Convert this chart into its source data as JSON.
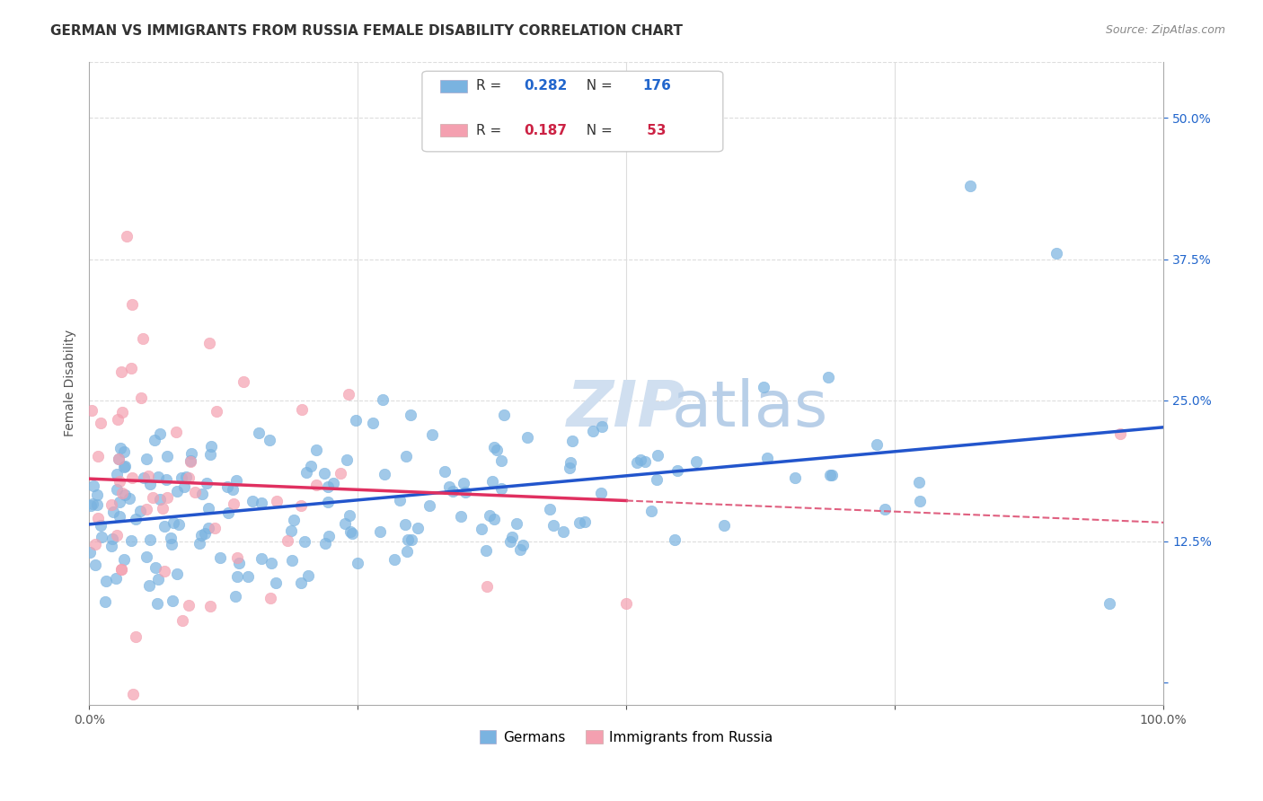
{
  "title": "GERMAN VS IMMIGRANTS FROM RUSSIA FEMALE DISABILITY CORRELATION CHART",
  "source_text": "Source: ZipAtlas.com",
  "xlabel": "",
  "ylabel": "Female Disability",
  "xlim": [
    0.0,
    1.0
  ],
  "ylim": [
    -0.02,
    0.55
  ],
  "x_ticks": [
    0.0,
    0.25,
    0.5,
    0.75,
    1.0
  ],
  "x_tick_labels": [
    "0.0%",
    "",
    "",
    "",
    "100.0%"
  ],
  "y_ticks": [
    0.0,
    0.125,
    0.25,
    0.375,
    0.5
  ],
  "y_tick_labels": [
    "",
    "12.5%",
    "25.0%",
    "37.5%",
    "50.0%"
  ],
  "german_R": 0.282,
  "german_N": 176,
  "russia_R": 0.187,
  "russia_N": 53,
  "german_color": "#7ab3e0",
  "russia_color": "#f4a0b0",
  "german_line_color": "#2255cc",
  "russia_line_color": "#e03060",
  "russia_dash_color": "#e06080",
  "watermark_text": "ZIPatlas",
  "watermark_color": "#d0dff0",
  "legend_label_german": "R = 0.282   N = 176",
  "legend_label_russia": "R = 0.187   N =  53",
  "bottom_legend_german": "Germans",
  "bottom_legend_russia": "Immigrants from Russia",
  "background_color": "#ffffff",
  "grid_color": "#dddddd",
  "title_fontsize": 11,
  "axis_label_fontsize": 10,
  "tick_fontsize": 10
}
